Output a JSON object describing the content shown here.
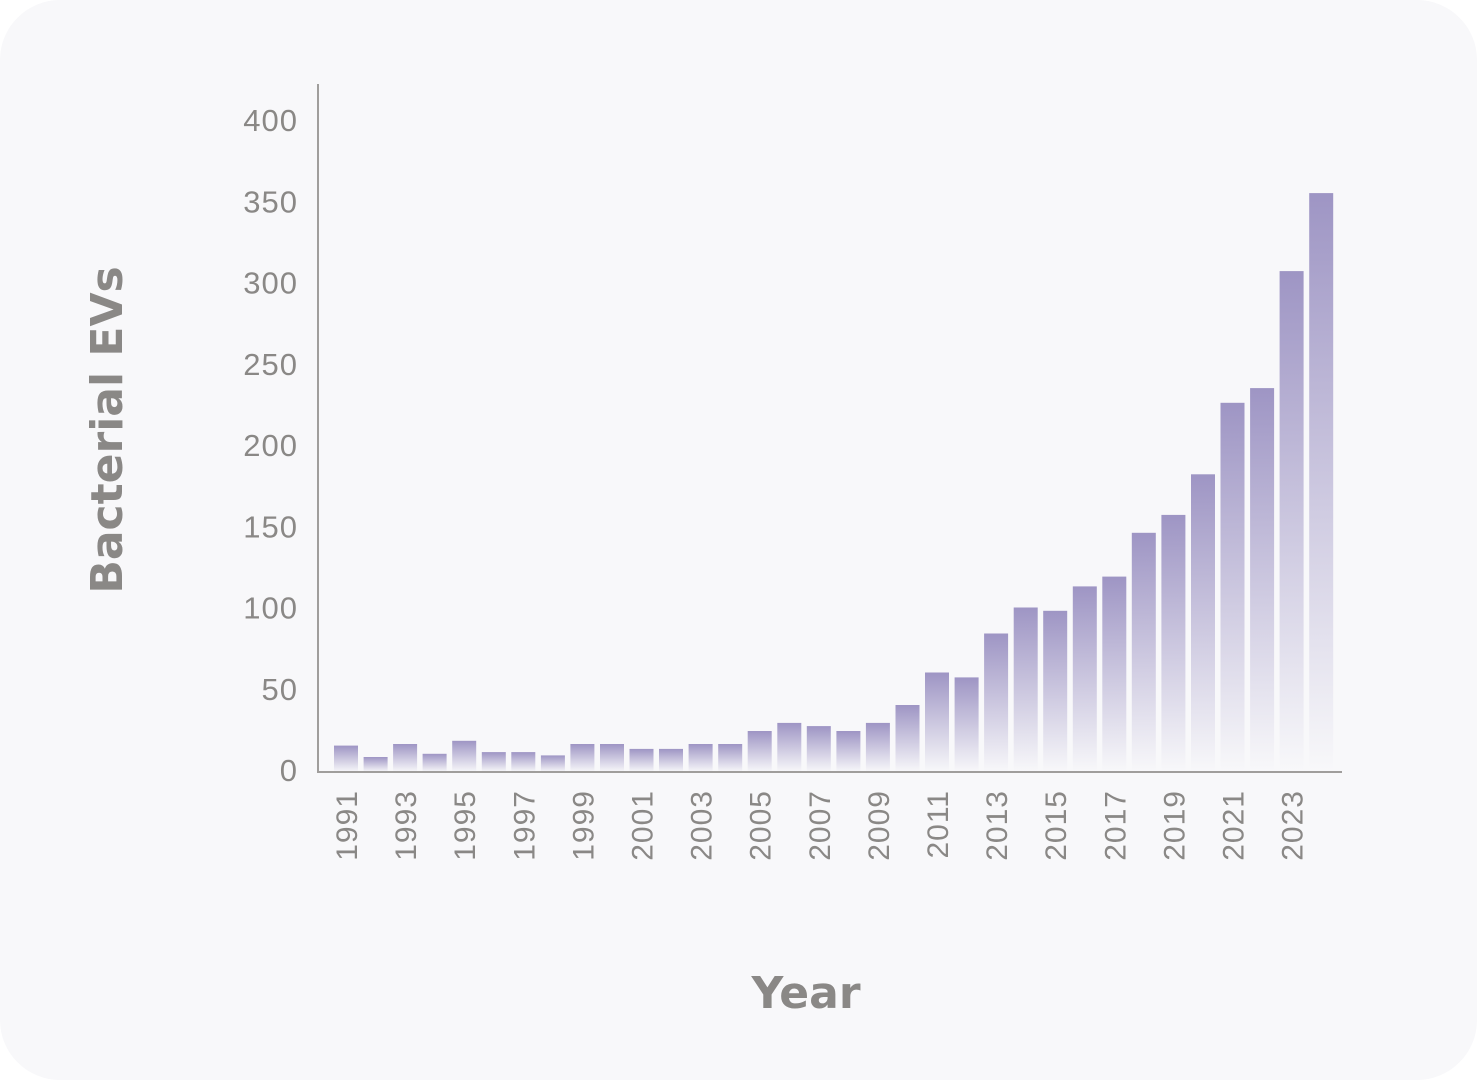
{
  "chart_data": {
    "type": "bar",
    "title": "",
    "xlabel": "Year",
    "ylabel": "Bacterial EVs",
    "ylim": [
      0,
      400
    ],
    "yticks": [
      0,
      50,
      100,
      150,
      200,
      250,
      300,
      350,
      400
    ],
    "categories": [
      "1991",
      "1992",
      "1993",
      "1994",
      "1995",
      "1996",
      "1997",
      "1998",
      "1999",
      "2000",
      "2001",
      "2002",
      "2003",
      "2004",
      "2005",
      "2006",
      "2007",
      "2008",
      "2009",
      "2010",
      "2011",
      "2012",
      "2013",
      "2014",
      "2015",
      "2016",
      "2017",
      "2018",
      "2019",
      "2020",
      "2021",
      "2022",
      "2023",
      "2024"
    ],
    "xtick_labels": [
      "1991",
      "1993",
      "1995",
      "1997",
      "1999",
      "2001",
      "2003",
      "2005",
      "2007",
      "2009",
      "2011",
      "2013",
      "2015",
      "2017",
      "2019",
      "2021",
      "2023"
    ],
    "values": [
      15,
      8,
      16,
      10,
      18,
      11,
      11,
      9,
      16,
      16,
      13,
      13,
      16,
      16,
      24,
      29,
      27,
      24,
      29,
      40,
      60,
      57,
      84,
      100,
      98,
      113,
      119,
      146,
      157,
      182,
      226,
      235,
      307,
      355
    ],
    "grid": false,
    "legend": "none",
    "colors": {
      "bar_top": "#9e95c4",
      "bar_bottom": "#f8f8fa",
      "axis": "#a09e9c",
      "text": "#8a8886",
      "background": "#f8f8fa"
    }
  }
}
